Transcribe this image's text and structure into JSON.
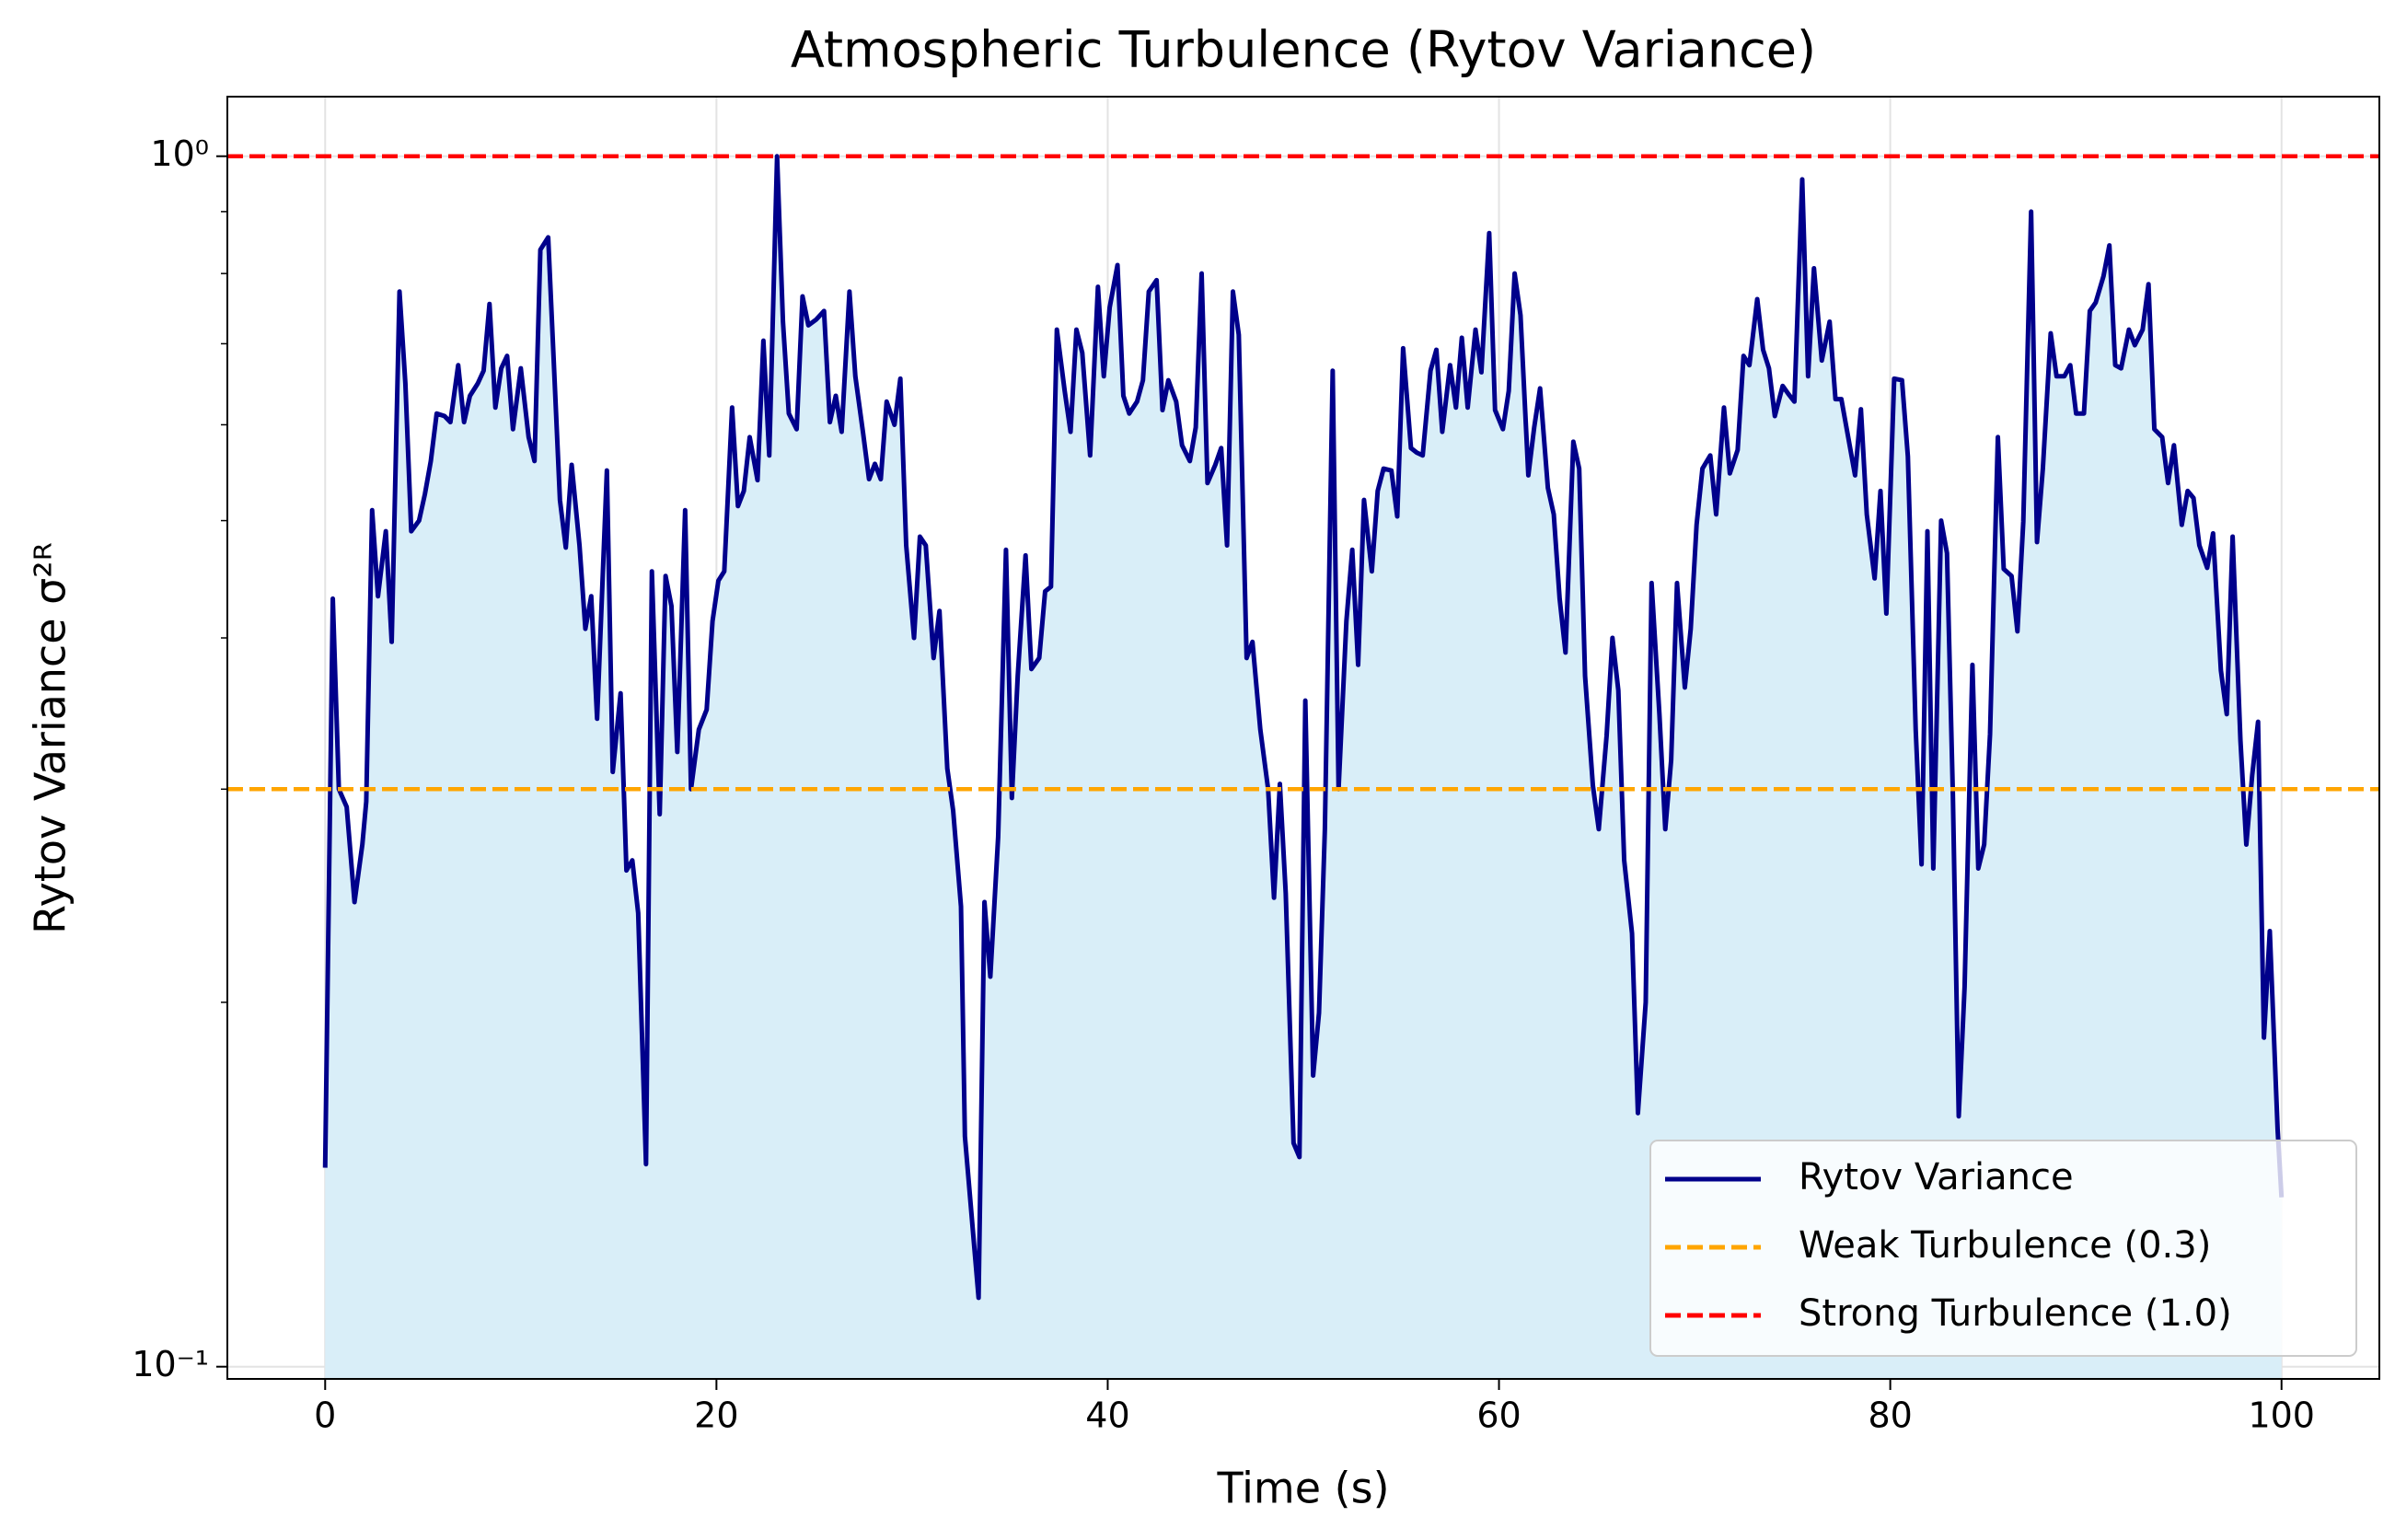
{
  "chart_data": {
    "type": "line",
    "title": "Atmospheric Turbulence (Rytov Variance)",
    "x_label": "Time (s)",
    "y_label": "Rytov Variance σ²ᴿ",
    "x": [
      0,
      0.39,
      0.7,
      1.1,
      1.5,
      1.9,
      2.1,
      2.4,
      2.7,
      3.1,
      3.4,
      3.8,
      4.1,
      4.4,
      4.8,
      5.1,
      5.4,
      5.7,
      6.1,
      6.4,
      6.8,
      7.1,
      7.4,
      7.8,
      8.1,
      8.4,
      8.7,
      9.0,
      9.3,
      9.6,
      10.0,
      10.4,
      10.7,
      11.0,
      11.4,
      11.7,
      12.0,
      12.3,
      12.6,
      13.0,
      13.3,
      13.6,
      13.9,
      14.4,
      14.7,
      15.1,
      15.4,
      15.7,
      16.0,
      16.4,
      16.7,
      17.1,
      17.4,
      17.7,
      18.0,
      18.4,
      18.7,
      19.1,
      19.5,
      19.8,
      20.1,
      20.4,
      20.8,
      21.1,
      21.4,
      21.7,
      22.1,
      22.4,
      22.7,
      23.1,
      23.4,
      23.7,
      24.1,
      24.4,
      24.7,
      25.1,
      25.5,
      25.8,
      26.1,
      26.4,
      26.8,
      27.1,
      27.5,
      27.8,
      28.1,
      28.4,
      28.7,
      29.1,
      29.4,
      29.7,
      30.1,
      30.4,
      30.7,
      31.1,
      31.4,
      31.8,
      32.1,
      32.5,
      32.7,
      33.1,
      33.4,
      33.7,
      34.0,
      34.4,
      34.8,
      35.1,
      35.4,
      35.8,
      36.1,
      36.5,
      36.8,
      37.1,
      37.4,
      37.8,
      38.1,
      38.4,
      38.7,
      39.1,
      39.5,
      39.8,
      40.1,
      40.5,
      40.8,
      41.1,
      41.5,
      41.8,
      42.1,
      42.5,
      42.8,
      43.1,
      43.5,
      43.8,
      44.2,
      44.5,
      44.8,
      45.1,
      45.5,
      45.8,
      46.1,
      46.4,
      46.7,
      47.1,
      47.4,
      47.8,
      48.2,
      48.5,
      48.8,
      49.1,
      49.5,
      49.8,
      50.1,
      50.5,
      50.8,
      51.1,
      51.5,
      51.8,
      52.2,
      52.5,
      52.8,
      53.1,
      53.5,
      53.8,
      54.1,
      54.5,
      54.8,
      55.1,
      55.5,
      55.8,
      56.1,
      56.5,
      56.8,
      57.1,
      57.5,
      57.8,
      58.1,
      58.4,
      58.8,
      59.1,
      59.5,
      59.8,
      60.2,
      60.5,
      60.8,
      61.1,
      61.5,
      61.8,
      62.1,
      62.5,
      62.8,
      63.1,
      63.4,
      63.8,
      64.1,
      64.4,
      64.8,
      65.1,
      65.5,
      65.8,
      66.1,
      66.4,
      66.8,
      67.1,
      67.5,
      67.8,
      68.2,
      68.5,
      68.8,
      69.1,
      69.5,
      69.8,
      70.1,
      70.4,
      70.8,
      71.1,
      71.5,
      71.8,
      72.2,
      72.5,
      72.8,
      73.2,
      73.5,
      73.8,
      74.1,
      74.5,
      74.8,
      75.1,
      75.5,
      75.8,
      76.1,
      76.5,
      76.9,
      77.2,
      77.5,
      77.8,
      78.2,
      78.5,
      78.8,
      79.2,
      79.5,
      79.8,
      80.2,
      80.6,
      80.9,
      81.3,
      81.6,
      81.9,
      82.2,
      82.6,
      82.9,
      83.2,
      83.5,
      83.8,
      84.2,
      84.5,
      84.8,
      85.1,
      85.5,
      85.8,
      86.2,
      86.5,
      86.8,
      87.2,
      87.5,
      87.8,
      88.2,
      88.5,
      88.9,
      89.2,
      89.5,
      89.9,
      90.2,
      90.5,
      90.9,
      91.2,
      91.5,
      91.8,
      92.2,
      92.5,
      92.9,
      93.2,
      93.5,
      93.9,
      94.2,
      94.5,
      94.9,
      95.2,
      95.5,
      95.8,
      96.2,
      96.5,
      96.9,
      97.2,
      97.5,
      97.9,
      98.2,
      98.5,
      98.8,
      99.1,
      99.4,
      99.8,
      100
    ],
    "series": [
      {
        "name": "Rytov Variance",
        "color": "#00008b",
        "fill_color": "#d9eef8",
        "values": [
          0.146,
          0.431,
          0.3,
          0.29,
          0.242,
          0.27,
          0.293,
          0.51,
          0.433,
          0.49,
          0.397,
          0.773,
          0.649,
          0.49,
          0.5,
          0.526,
          0.56,
          0.613,
          0.61,
          0.603,
          0.672,
          0.603,
          0.634,
          0.649,
          0.665,
          0.755,
          0.62,
          0.668,
          0.684,
          0.595,
          0.668,
          0.586,
          0.56,
          0.837,
          0.857,
          0.668,
          0.52,
          0.475,
          0.556,
          0.477,
          0.407,
          0.433,
          0.343,
          0.55,
          0.31,
          0.36,
          0.257,
          0.262,
          0.237,
          0.147,
          0.454,
          0.286,
          0.45,
          0.425,
          0.322,
          0.51,
          0.3,
          0.336,
          0.349,
          0.413,
          0.446,
          0.454,
          0.62,
          0.514,
          0.529,
          0.586,
          0.54,
          0.704,
          0.566,
          1.0,
          0.73,
          0.613,
          0.595,
          0.766,
          0.725,
          0.733,
          0.745,
          0.603,
          0.634,
          0.592,
          0.773,
          0.658,
          0.59,
          0.541,
          0.557,
          0.541,
          0.627,
          0.6,
          0.655,
          0.477,
          0.4,
          0.485,
          0.477,
          0.385,
          0.421,
          0.312,
          0.288,
          0.24,
          0.155,
          0.13,
          0.114,
          0.242,
          0.21,
          0.274,
          0.473,
          0.295,
          0.372,
          0.468,
          0.377,
          0.385,
          0.437,
          0.441,
          0.719,
          0.64,
          0.592,
          0.719,
          0.688,
          0.566,
          0.78,
          0.658,
          0.75,
          0.813,
          0.634,
          0.613,
          0.627,
          0.653,
          0.773,
          0.79,
          0.617,
          0.653,
          0.627,
          0.577,
          0.56,
          0.597,
          0.8,
          0.537,
          0.556,
          0.574,
          0.477,
          0.773,
          0.712,
          0.385,
          0.397,
          0.336,
          0.3,
          0.244,
          0.303,
          0.246,
          0.153,
          0.149,
          0.355,
          0.174,
          0.196,
          0.278,
          0.665,
          0.3,
          0.413,
          0.473,
          0.38,
          0.52,
          0.454,
          0.529,
          0.552,
          0.55,
          0.504,
          0.694,
          0.574,
          0.569,
          0.566,
          0.665,
          0.692,
          0.592,
          0.672,
          0.62,
          0.708,
          0.62,
          0.719,
          0.663,
          0.864,
          0.617,
          0.595,
          0.64,
          0.8,
          0.739,
          0.545,
          0.597,
          0.643,
          0.532,
          0.506,
          0.431,
          0.389,
          0.581,
          0.552,
          0.372,
          0.302,
          0.278,
          0.332,
          0.4,
          0.362,
          0.262,
          0.228,
          0.162,
          0.2,
          0.444,
          0.346,
          0.278,
          0.317,
          0.444,
          0.364,
          0.407,
          0.496,
          0.552,
          0.566,
          0.506,
          0.62,
          0.547,
          0.572,
          0.684,
          0.672,
          0.762,
          0.692,
          0.668,
          0.61,
          0.646,
          0.636,
          0.627,
          0.957,
          0.658,
          0.808,
          0.678,
          0.73,
          0.63,
          0.63,
          0.592,
          0.545,
          0.618,
          0.506,
          0.448,
          0.529,
          0.419,
          0.655,
          0.653,
          0.565,
          0.336,
          0.26,
          0.49,
          0.258,
          0.5,
          0.47,
          0.297,
          0.161,
          0.206,
          0.38,
          0.258,
          0.27,
          0.333,
          0.586,
          0.456,
          0.45,
          0.405,
          0.499,
          0.9,
          0.48,
          0.552,
          0.714,
          0.658,
          0.658,
          0.672,
          0.613,
          0.613,
          0.745,
          0.757,
          0.796,
          0.844,
          0.672,
          0.668,
          0.719,
          0.698,
          0.719,
          0.784,
          0.595,
          0.586,
          0.537,
          0.577,
          0.496,
          0.529,
          0.522,
          0.477,
          0.457,
          0.488,
          0.376,
          0.346,
          0.485,
          0.329,
          0.27,
          0.308,
          0.341,
          0.187,
          0.229,
          0.157,
          0.138
        ]
      }
    ],
    "reference_lines": [
      {
        "name": "Weak Turbulence (0.3)",
        "value": 0.3,
        "color": "#ffa500"
      },
      {
        "name": "Strong Turbulence (1.0)",
        "value": 1.0,
        "color": "#ff0000"
      }
    ],
    "xlim": [
      -5,
      105
    ],
    "xticks": [
      0,
      20,
      40,
      60,
      80,
      100
    ],
    "ylim": [
      0.0977,
      1.12
    ],
    "y_scale": "log",
    "yticks": [
      {
        "value": 0.1,
        "label": "10⁻¹"
      },
      {
        "value": 1,
        "label": "10⁰"
      }
    ],
    "yminorticks": [
      0.2,
      0.3,
      0.4,
      0.5,
      0.6,
      0.7,
      0.8,
      0.9
    ],
    "grid": true,
    "legend_loc": "lower right"
  }
}
